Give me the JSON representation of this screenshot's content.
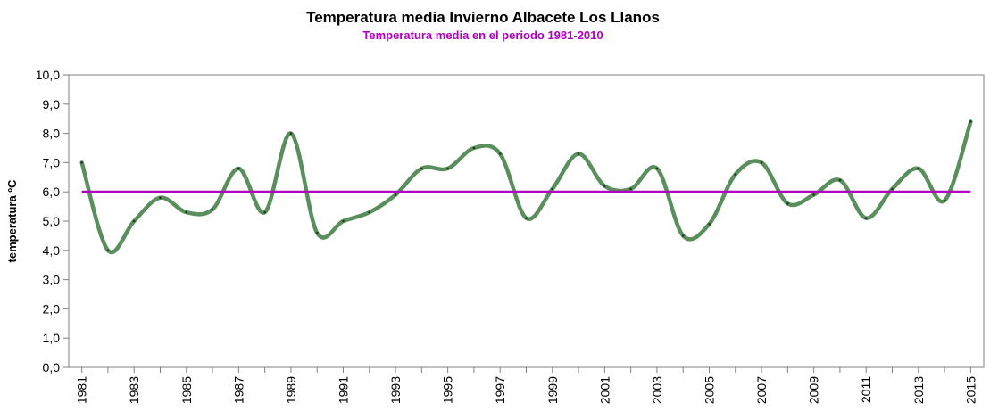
{
  "chart_data": {
    "type": "line",
    "title": "Temperatura media Invierno Albacete Los Llanos",
    "subtitle": "Temperatura media en el periodo 1981-2010",
    "xlabel": "",
    "ylabel": "temperatura ºC",
    "ylim": [
      0,
      10
    ],
    "yticks": [
      "0,0",
      "1,0",
      "2,0",
      "3,0",
      "4,0",
      "5,0",
      "6,0",
      "7,0",
      "8,0",
      "9,0",
      "10,0"
    ],
    "xticks": [
      "1981",
      "1983",
      "1985",
      "1987",
      "1989",
      "1991",
      "1993",
      "1995",
      "1997",
      "1999",
      "2001",
      "2003",
      "2005",
      "2007",
      "2009",
      "2011",
      "2013",
      "2015"
    ],
    "x": [
      1981,
      1982,
      1983,
      1984,
      1985,
      1986,
      1987,
      1988,
      1989,
      1990,
      1991,
      1992,
      1993,
      1994,
      1995,
      1996,
      1997,
      1998,
      1999,
      2000,
      2001,
      2002,
      2003,
      2004,
      2005,
      2006,
      2007,
      2008,
      2009,
      2010,
      2011,
      2012,
      2013,
      2014,
      2015
    ],
    "series": [
      {
        "values": [
          7.0,
          4.0,
          5.0,
          5.8,
          5.3,
          5.4,
          6.8,
          5.3,
          8.0,
          4.6,
          5.0,
          5.3,
          5.9,
          6.8,
          6.8,
          7.5,
          7.3,
          5.1,
          6.1,
          7.3,
          6.2,
          6.1,
          6.8,
          4.5,
          4.9,
          6.6,
          7.0,
          5.6,
          5.9,
          6.4,
          5.1,
          6.1,
          6.8,
          5.7,
          8.4
        ],
        "color": "#5a8f5d"
      },
      {
        "name": "Temperatura media en el periodo 1981-2010",
        "values": [
          6.0,
          6.0
        ],
        "x": [
          1981,
          2015
        ],
        "color": "#b000c0"
      }
    ],
    "grid": false,
    "legend": "none",
    "colors": {
      "subtitle": "#b000c0",
      "axis": "#808080"
    }
  }
}
